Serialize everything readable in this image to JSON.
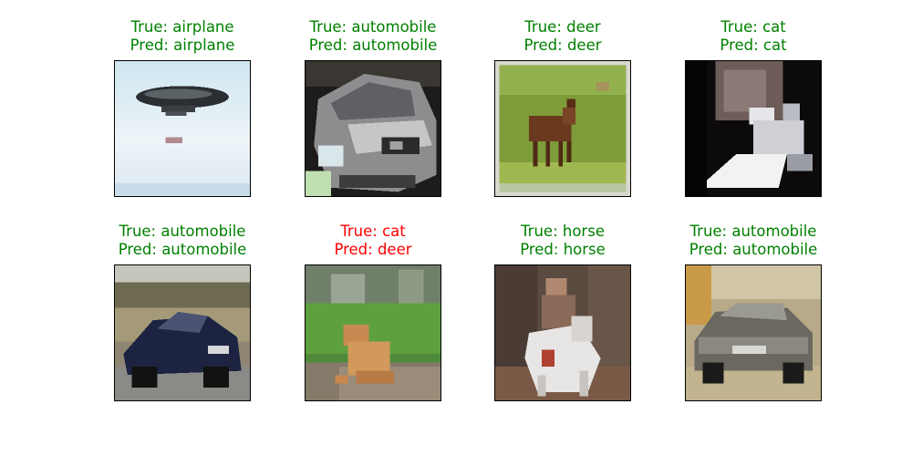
{
  "colors": {
    "correct": "#008000",
    "incorrect": "#ff0000"
  },
  "samples": [
    {
      "true_label": "True: airplane",
      "pred_label": "Pred: airplane",
      "correct": true,
      "content": "airship-sky"
    },
    {
      "true_label": "True: automobile",
      "pred_label": "Pred: automobile",
      "correct": true,
      "content": "silver-car-front"
    },
    {
      "true_label": "True: deer",
      "pred_label": "Pred: deer",
      "correct": true,
      "content": "deer-grass"
    },
    {
      "true_label": "True: cat",
      "pred_label": "Pred: cat",
      "correct": true,
      "content": "cat-dark-room"
    },
    {
      "true_label": "True: automobile",
      "pred_label": "Pred: automobile",
      "correct": true,
      "content": "blue-car-road"
    },
    {
      "true_label": "True: cat",
      "pred_label": "Pred: deer",
      "correct": false,
      "content": "orange-cat-grass"
    },
    {
      "true_label": "True: horse",
      "pred_label": "Pred: horse",
      "correct": true,
      "content": "rider-white-horse"
    },
    {
      "true_label": "True: automobile",
      "pred_label": "Pred: automobile",
      "correct": true,
      "content": "grey-sedan"
    }
  ]
}
